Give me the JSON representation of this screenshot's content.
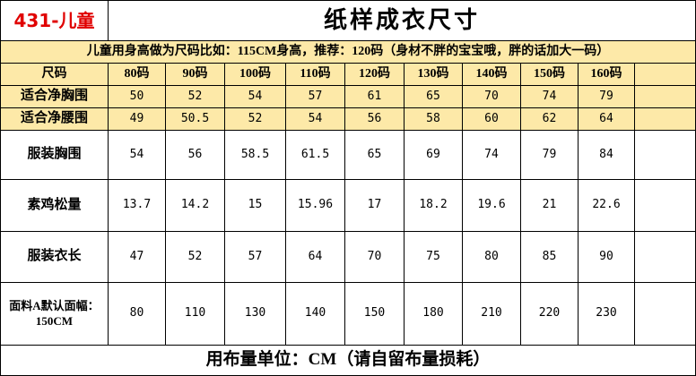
{
  "header": {
    "code": "431-儿童",
    "title": "纸样成衣尺寸"
  },
  "note": "儿童用身高做为尺码比如：115CM身高，推荐：120码（身材不胖的宝宝哦，胖的话加大一码）",
  "table": {
    "columns": [
      "尺码",
      "80码",
      "90码",
      "100码",
      "110码",
      "120码",
      "130码",
      "140码",
      "150码",
      "160码"
    ],
    "rows": [
      [
        "适合净胸围",
        "50",
        "52",
        "54",
        "57",
        "61",
        "65",
        "70",
        "74",
        "79"
      ],
      [
        "适合净腰围",
        "49",
        "50.5",
        "52",
        "54",
        "56",
        "58",
        "60",
        "62",
        "64"
      ],
      [
        "服装胸围",
        "54",
        "56",
        "58.5",
        "61.5",
        "65",
        "69",
        "74",
        "79",
        "84"
      ],
      [
        "素鸡松量",
        "13.7",
        "14.2",
        "15",
        "15.96",
        "17",
        "18.2",
        "19.6",
        "21",
        "22.6"
      ],
      [
        "服装衣长",
        "47",
        "52",
        "57",
        "64",
        "70",
        "75",
        "80",
        "85",
        "90"
      ],
      [
        "面料A默认面幅：150CM",
        "80",
        "110",
        "130",
        "140",
        "150",
        "180",
        "210",
        "220",
        "230"
      ]
    ]
  },
  "footer": "用布量单位：CM（请自留布量损耗）"
}
